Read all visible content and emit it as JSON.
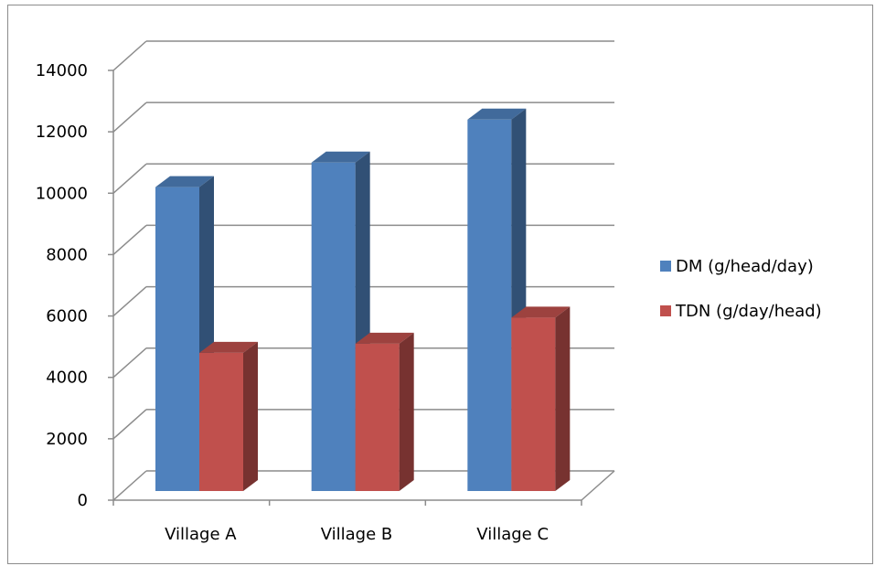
{
  "chart_data": {
    "type": "bar",
    "style": "3d-clustered-column",
    "title": "",
    "xlabel": "",
    "ylabel": "",
    "categories": [
      "Village A",
      "Village B",
      "Village C"
    ],
    "series": [
      {
        "name": "DM (g/head/day)",
        "values": [
          9900,
          10700,
          12100
        ],
        "color": "#4F81BD"
      },
      {
        "name": "TDN (g/day/head)",
        "values": [
          4500,
          4800,
          5650
        ],
        "color": "#C0504D"
      }
    ],
    "ylim": [
      0,
      14000
    ],
    "yticks": [
      "0",
      "2000",
      "4000",
      "6000",
      "8000",
      "10000",
      "12000",
      "14000"
    ],
    "grid": true,
    "legend_position": "right"
  }
}
